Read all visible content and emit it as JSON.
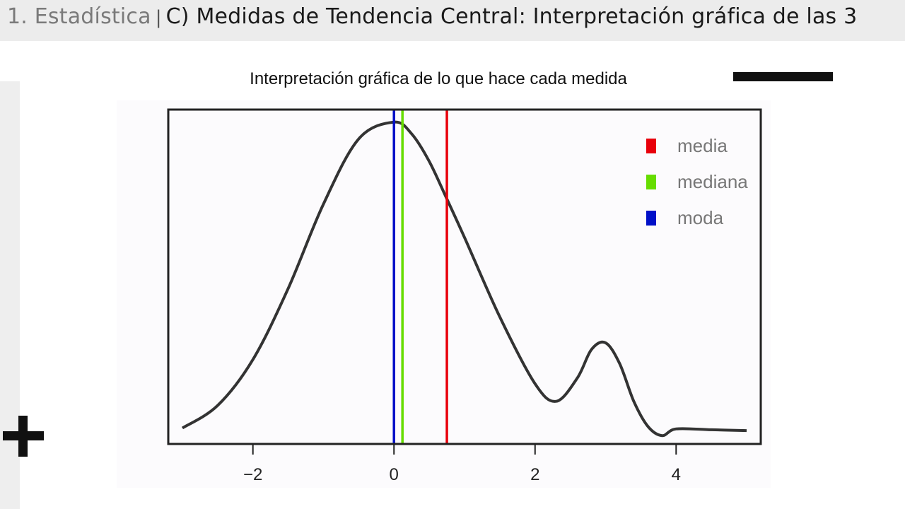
{
  "header": {
    "breadcrumb": "1. Estadística",
    "separator": "|",
    "title": "C) Medidas de Tendencia Central: Interpretación gráfica de las 3"
  },
  "slide": {
    "title": "Interpretación gráfica de lo que hace cada medida"
  },
  "icons": {
    "plus": "plus-icon"
  },
  "colors": {
    "media": "#e8000b",
    "mediana": "#66dd00",
    "moda": "#0010c8",
    "curve": "#333333"
  },
  "chart_data": {
    "type": "line",
    "title": "",
    "xlabel": "",
    "ylabel": "",
    "xlim": [
      -3.2,
      5.2
    ],
    "ylim": [
      0,
      0.4
    ],
    "x_ticks": [
      -2,
      0,
      2,
      4
    ],
    "x_tick_labels": [
      "−2",
      "0",
      "2",
      "4"
    ],
    "grid": false,
    "legend_position": "top-right",
    "series": [
      {
        "x": [
          -3.0,
          -2.5,
          -2.0,
          -1.5,
          -1.0,
          -0.5,
          0.0,
          0.25,
          0.5,
          0.75,
          1.0,
          1.5,
          2.0,
          2.3,
          2.6,
          2.8,
          3.0,
          3.2,
          3.4,
          3.6,
          3.8,
          4.0,
          4.5,
          5.0
        ],
        "y": [
          0.019,
          0.046,
          0.101,
          0.186,
          0.287,
          0.365,
          0.385,
          0.371,
          0.338,
          0.293,
          0.247,
          0.152,
          0.072,
          0.051,
          0.079,
          0.113,
          0.121,
          0.096,
          0.051,
          0.021,
          0.01,
          0.018,
          0.017,
          0.016
        ]
      }
    ],
    "vertical_lines": [
      {
        "name": "media",
        "x": 0.75
      },
      {
        "name": "mediana",
        "x": 0.12
      },
      {
        "name": "moda",
        "x": 0.0
      }
    ],
    "legend": [
      "media",
      "mediana",
      "moda"
    ]
  }
}
